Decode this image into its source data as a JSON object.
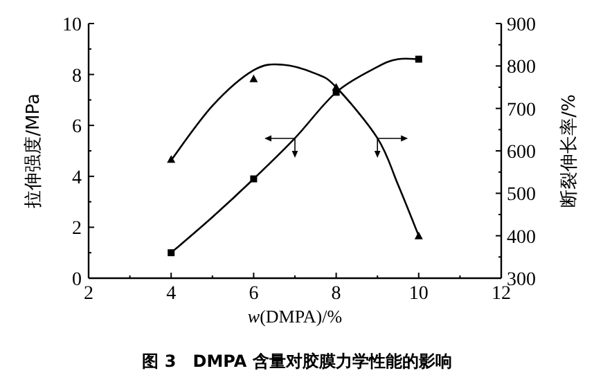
{
  "chart_data": {
    "type": "scatter",
    "title": "图 3　DMPA 含量对胶膜力学性能的影响",
    "xlabel": "*w*(DMPA)/%",
    "ylabel": "拉伸强度/MPa",
    "y2label": "断裂伸长率/%",
    "xlim": [
      2,
      12
    ],
    "xticks": [
      2,
      4,
      6,
      8,
      10,
      12
    ],
    "ylim": [
      0,
      10
    ],
    "yticks": [
      0,
      2,
      4,
      6,
      8,
      10
    ],
    "y2lim": [
      300,
      900
    ],
    "y2ticks": [
      300,
      400,
      500,
      600,
      700,
      800,
      900
    ],
    "grid": false,
    "series": [
      {
        "type": "line",
        "axis": "y",
        "color": "#000000",
        "x": [
          4,
          5,
          6,
          7,
          8,
          9,
          9.5,
          10
        ],
        "values": [
          1.0,
          2.4,
          3.9,
          5.5,
          7.3,
          8.3,
          8.6,
          8.6
        ]
      },
      {
        "type": "line",
        "axis": "y2",
        "color": "#000000",
        "x": [
          4,
          5,
          6,
          6.7,
          7.5,
          8,
          9,
          9.5,
          10
        ],
        "values": [
          578,
          706,
          790,
          803,
          782,
          750,
          630,
          520,
          400
        ]
      },
      {
        "axis": "y",
        "marker": "square",
        "color": "#000000",
        "x": [
          4,
          6,
          8,
          10
        ],
        "values": [
          1.0,
          3.9,
          7.3,
          8.6
        ]
      },
      {
        "axis": "y2",
        "marker": "triangle",
        "color": "#000000",
        "x": [
          4,
          6,
          8,
          10
        ],
        "values": [
          580,
          770,
          750,
          400
        ]
      }
    ]
  }
}
